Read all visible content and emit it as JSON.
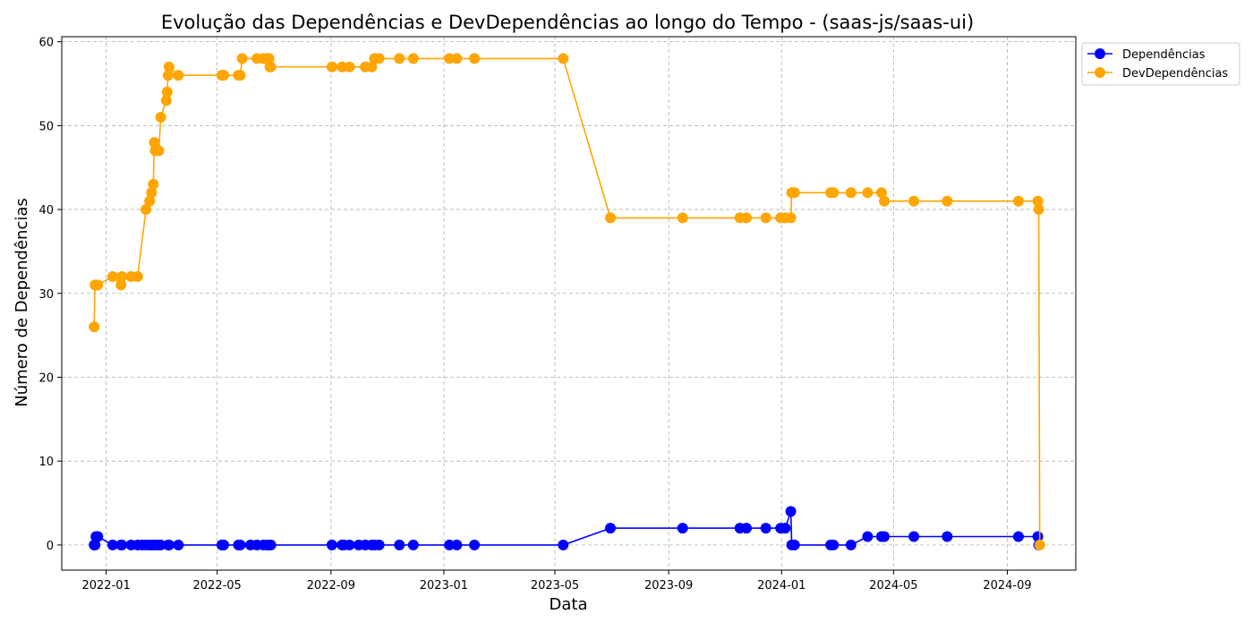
{
  "chart_data": {
    "type": "line",
    "title": "Evolução das Dependências e DevDependências ao longo do Tempo - (saas-js/saas-ui)",
    "xlabel": "Data",
    "ylabel": "Número de Dependências",
    "xlim": [
      "2021-11-14",
      "2024-11-14"
    ],
    "ylim": [
      -3,
      60.6
    ],
    "x_ticks": [
      "2022-01-01",
      "2022-05-01",
      "2022-09-01",
      "2023-01-01",
      "2023-05-01",
      "2023-09-01",
      "2024-01-01",
      "2024-05-01",
      "2024-09-01"
    ],
    "x_tick_labels": [
      "2022-01",
      "2022-05",
      "2022-09",
      "2023-01",
      "2023-05",
      "2023-09",
      "2024-01",
      "2024-05",
      "2024-09"
    ],
    "y_ticks": [
      0,
      10,
      20,
      30,
      40,
      50,
      60
    ],
    "y_tick_labels": [
      "0",
      "10",
      "20",
      "30",
      "40",
      "50",
      "60"
    ],
    "grid": true,
    "legend_position": "outside-top-right",
    "series": [
      {
        "name": "Dependências",
        "color": "#0000ff",
        "points": [
          [
            "2021-12-19",
            0
          ],
          [
            "2021-12-20",
            0
          ],
          [
            "2021-12-21",
            1
          ],
          [
            "2021-12-22",
            1
          ],
          [
            "2021-12-23",
            1
          ],
          [
            "2022-01-08",
            0
          ],
          [
            "2022-01-17",
            0
          ],
          [
            "2022-01-18",
            0
          ],
          [
            "2022-01-28",
            0
          ],
          [
            "2022-02-04",
            0
          ],
          [
            "2022-02-09",
            0
          ],
          [
            "2022-02-13",
            0
          ],
          [
            "2022-02-17",
            0
          ],
          [
            "2022-02-19",
            0
          ],
          [
            "2022-02-21",
            0
          ],
          [
            "2022-02-24",
            0
          ],
          [
            "2022-02-27",
            0
          ],
          [
            "2022-03-01",
            0
          ],
          [
            "2022-03-09",
            0
          ],
          [
            "2022-03-10",
            0
          ],
          [
            "2022-03-20",
            0
          ],
          [
            "2022-05-06",
            0
          ],
          [
            "2022-05-08",
            0
          ],
          [
            "2022-05-24",
            0
          ],
          [
            "2022-05-26",
            0
          ],
          [
            "2022-06-06",
            0
          ],
          [
            "2022-06-13",
            0
          ],
          [
            "2022-06-20",
            0
          ],
          [
            "2022-06-24",
            0
          ],
          [
            "2022-06-26",
            0
          ],
          [
            "2022-06-28",
            0
          ],
          [
            "2022-09-02",
            0
          ],
          [
            "2022-09-13",
            0
          ],
          [
            "2022-09-15",
            0
          ],
          [
            "2022-09-21",
            0
          ],
          [
            "2022-10-01",
            0
          ],
          [
            "2022-10-08",
            0
          ],
          [
            "2022-10-15",
            0
          ],
          [
            "2022-10-18",
            0
          ],
          [
            "2022-10-23",
            0
          ],
          [
            "2022-11-14",
            0
          ],
          [
            "2022-11-29",
            0
          ],
          [
            "2023-01-07",
            0
          ],
          [
            "2023-01-15",
            0
          ],
          [
            "2023-02-03",
            0
          ],
          [
            "2023-05-10",
            0
          ],
          [
            "2023-06-30",
            2
          ],
          [
            "2023-09-16",
            2
          ],
          [
            "2023-11-17",
            2
          ],
          [
            "2023-11-24",
            2
          ],
          [
            "2023-12-15",
            2
          ],
          [
            "2023-12-31",
            2
          ],
          [
            "2024-01-05",
            2
          ],
          [
            "2024-01-11",
            4
          ],
          [
            "2024-01-12",
            0
          ],
          [
            "2024-01-15",
            0
          ],
          [
            "2024-02-23",
            0
          ],
          [
            "2024-02-26",
            0
          ],
          [
            "2024-03-16",
            0
          ],
          [
            "2024-04-03",
            1
          ],
          [
            "2024-04-18",
            1
          ],
          [
            "2024-04-21",
            1
          ],
          [
            "2024-05-23",
            1
          ],
          [
            "2024-06-28",
            1
          ],
          [
            "2024-09-13",
            1
          ],
          [
            "2024-10-04",
            1
          ],
          [
            "2024-10-05",
            0
          ]
        ]
      },
      {
        "name": "DevDependências",
        "color": "#ffa500",
        "points": [
          [
            "2021-12-19",
            26
          ],
          [
            "2021-12-20",
            31
          ],
          [
            "2021-12-21",
            31
          ],
          [
            "2021-12-23",
            31
          ],
          [
            "2022-01-08",
            32
          ],
          [
            "2022-01-17",
            31
          ],
          [
            "2022-01-18",
            32
          ],
          [
            "2022-01-28",
            32
          ],
          [
            "2022-02-04",
            32
          ],
          [
            "2022-02-13",
            40
          ],
          [
            "2022-02-17",
            41
          ],
          [
            "2022-02-19",
            42
          ],
          [
            "2022-02-21",
            43
          ],
          [
            "2022-02-22",
            48
          ],
          [
            "2022-02-23",
            47
          ],
          [
            "2022-02-27",
            47
          ],
          [
            "2022-03-01",
            51
          ],
          [
            "2022-03-07",
            53
          ],
          [
            "2022-03-08",
            54
          ],
          [
            "2022-03-09",
            56
          ],
          [
            "2022-03-10",
            57
          ],
          [
            "2022-03-20",
            56
          ],
          [
            "2022-05-06",
            56
          ],
          [
            "2022-05-08",
            56
          ],
          [
            "2022-05-24",
            56
          ],
          [
            "2022-05-26",
            56
          ],
          [
            "2022-05-28",
            58
          ],
          [
            "2022-06-13",
            58
          ],
          [
            "2022-06-20",
            58
          ],
          [
            "2022-06-24",
            58
          ],
          [
            "2022-06-26",
            58
          ],
          [
            "2022-06-27",
            57
          ],
          [
            "2022-06-28",
            57
          ],
          [
            "2022-09-02",
            57
          ],
          [
            "2022-09-13",
            57
          ],
          [
            "2022-09-21",
            57
          ],
          [
            "2022-10-08",
            57
          ],
          [
            "2022-10-15",
            57
          ],
          [
            "2022-10-18",
            58
          ],
          [
            "2022-10-23",
            58
          ],
          [
            "2022-11-14",
            58
          ],
          [
            "2022-11-29",
            58
          ],
          [
            "2023-01-07",
            58
          ],
          [
            "2023-01-15",
            58
          ],
          [
            "2023-02-03",
            58
          ],
          [
            "2023-05-10",
            58
          ],
          [
            "2023-06-30",
            39
          ],
          [
            "2023-09-16",
            39
          ],
          [
            "2023-11-17",
            39
          ],
          [
            "2023-11-24",
            39
          ],
          [
            "2023-12-15",
            39
          ],
          [
            "2023-12-31",
            39
          ],
          [
            "2024-01-05",
            39
          ],
          [
            "2024-01-11",
            39
          ],
          [
            "2024-01-12",
            42
          ],
          [
            "2024-01-15",
            42
          ],
          [
            "2024-02-23",
            42
          ],
          [
            "2024-02-26",
            42
          ],
          [
            "2024-03-16",
            42
          ],
          [
            "2024-04-03",
            42
          ],
          [
            "2024-04-18",
            42
          ],
          [
            "2024-04-21",
            41
          ],
          [
            "2024-05-23",
            41
          ],
          [
            "2024-06-28",
            41
          ],
          [
            "2024-09-13",
            41
          ],
          [
            "2024-10-04",
            41
          ],
          [
            "2024-10-05",
            40
          ],
          [
            "2024-10-06",
            0
          ]
        ]
      }
    ]
  }
}
